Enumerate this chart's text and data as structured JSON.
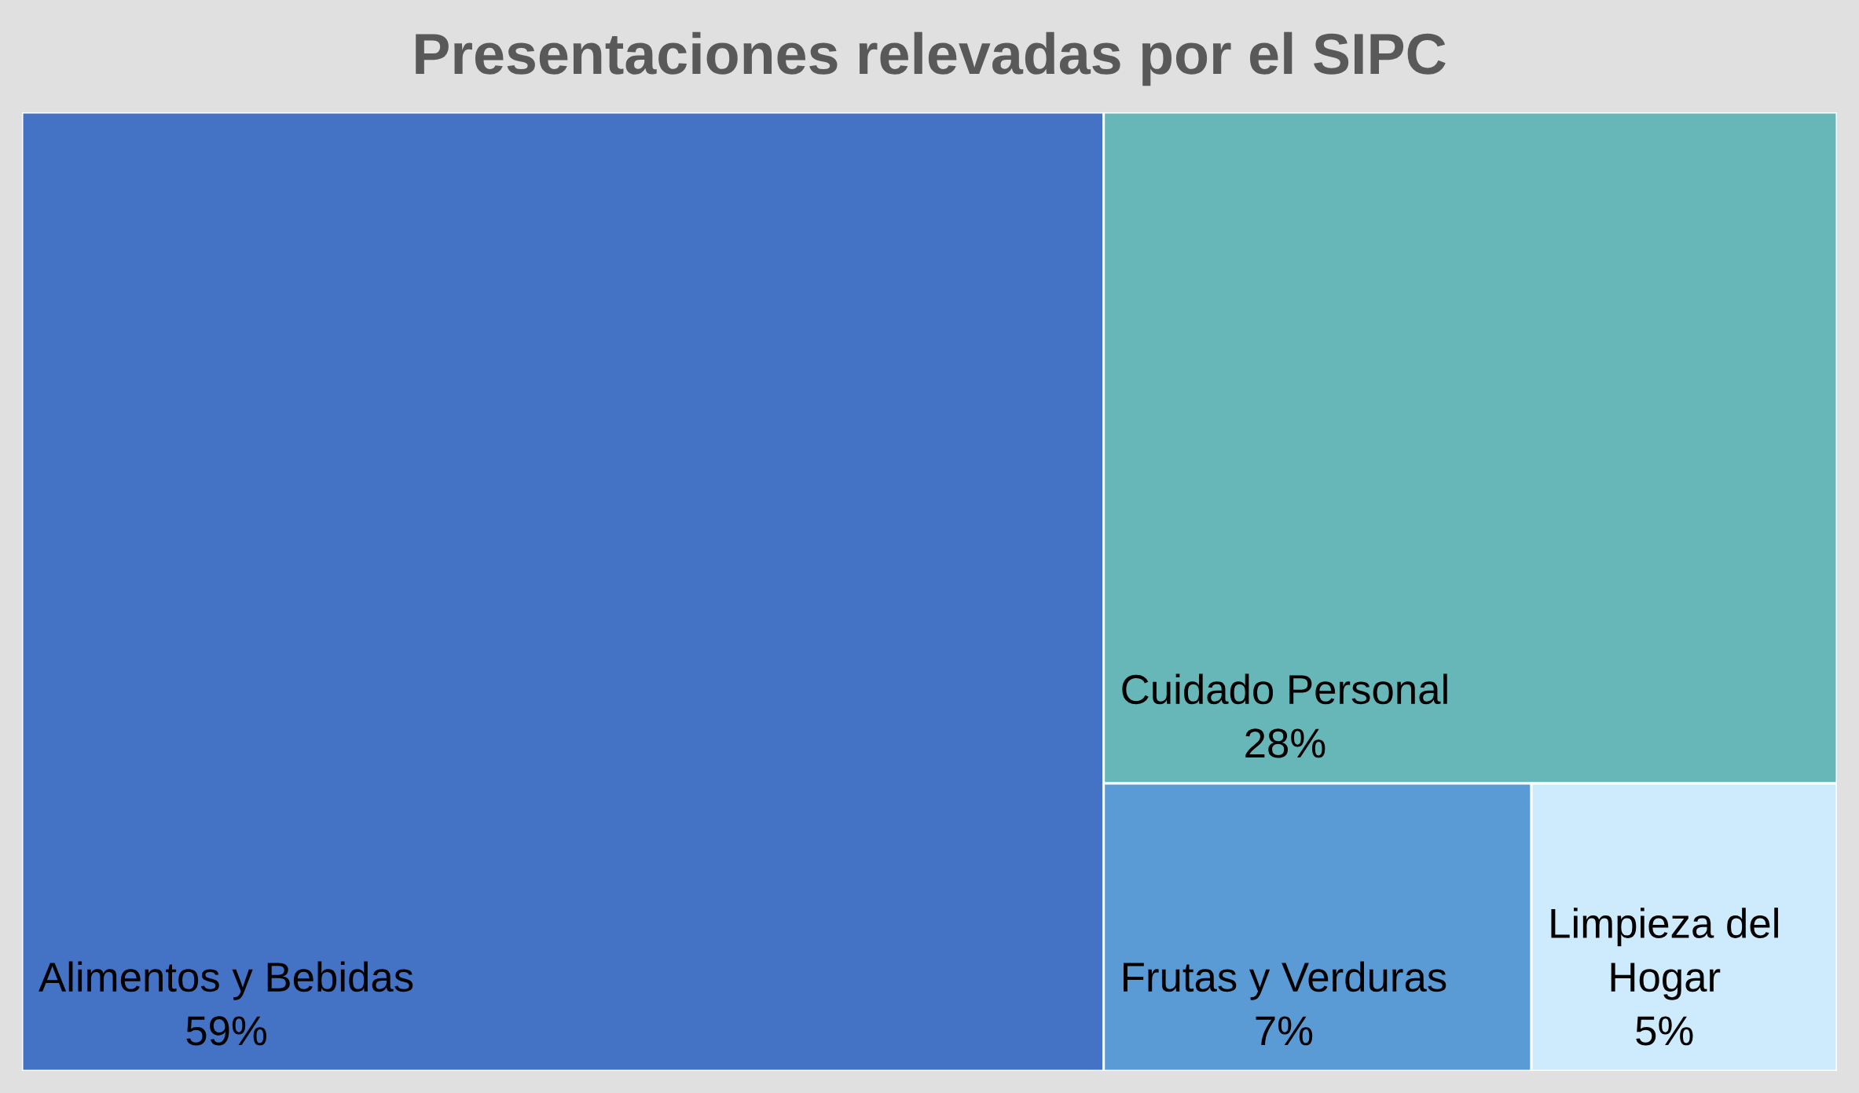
{
  "chart_data": {
    "type": "other",
    "title": "Presentaciones relevadas por el SIPC",
    "categories": [
      "Alimentos y Bebidas",
      "Cuidado Personal",
      "Frutas y Verduras",
      "Limpieza del Hogar"
    ],
    "values": [
      59,
      28,
      7,
      5
    ],
    "value_labels": [
      "59%",
      "28%",
      "7%",
      "5%"
    ],
    "colors": [
      "#4472c4",
      "#67b6b8",
      "#5b9bd5",
      "#cdebfc"
    ]
  }
}
